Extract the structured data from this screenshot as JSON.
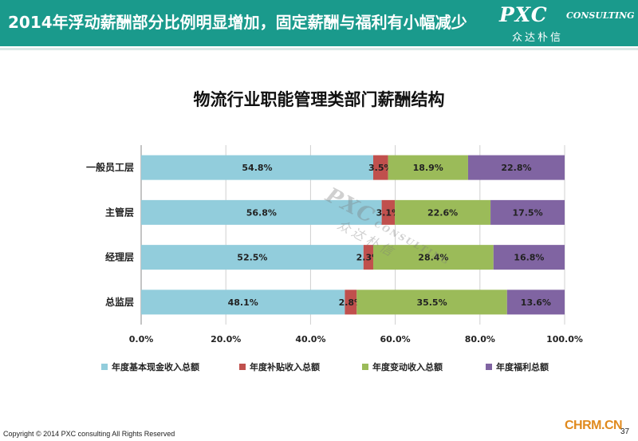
{
  "header": {
    "title": "2014年浮动薪酬部分比例明显增加，固定薪酬与福利有小幅减少",
    "logo_main": "PXC",
    "logo_sub": "CONSULTING",
    "logo_cn": "众达朴信",
    "background": "#1a9a8c"
  },
  "watermark": {
    "main": "PXC",
    "sub": "CONSULTING",
    "cn": "众达朴信"
  },
  "chart_data": {
    "type": "bar",
    "orientation": "horizontal",
    "stacked": true,
    "title": "物流行业职能管理类部门薪酬结构",
    "categories": [
      "一般员工层",
      "主管层",
      "经理层",
      "总监层"
    ],
    "series": [
      {
        "name": "年度基本现金收入总额",
        "values": [
          54.8,
          56.8,
          52.5,
          48.1
        ],
        "color": "#92cddc"
      },
      {
        "name": "年度补贴收入总额",
        "values": [
          3.5,
          3.1,
          2.3,
          2.8
        ],
        "color": "#c0504d"
      },
      {
        "name": "年度变动收入总额",
        "values": [
          18.9,
          22.6,
          28.4,
          35.5
        ],
        "color": "#9bbb59"
      },
      {
        "name": "年度福利总额",
        "values": [
          22.8,
          17.5,
          16.8,
          13.6
        ],
        "color": "#8064a2"
      }
    ],
    "value_labels": [
      [
        "54.8%",
        "3.5%",
        "18.9%",
        "22.8%"
      ],
      [
        "56.8%",
        "3.1%",
        "22.6%",
        "17.5%"
      ],
      [
        "52.5%",
        "2.3%",
        "28.4%",
        "16.8%"
      ],
      [
        "48.1%",
        "2.8%",
        "35.5%",
        "13.6%"
      ]
    ],
    "x_ticks": [
      "0.0%",
      "20.0%",
      "40.0%",
      "60.0%",
      "80.0%",
      "100.0%"
    ],
    "xlim": [
      0,
      100
    ],
    "grid": true,
    "legend_position": "bottom"
  },
  "footer": {
    "copyright": "Copyright © 2014  PXC consulting All Rights Reserved",
    "site": "CHRM.CN",
    "page": "37"
  }
}
